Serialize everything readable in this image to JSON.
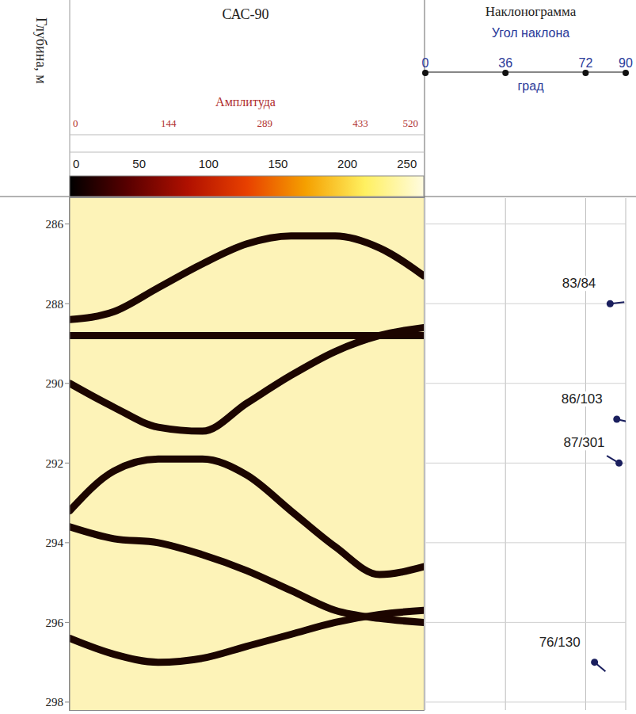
{
  "chart_data": [
    {
      "type": "line",
      "title": "САС-90",
      "ylabel": "Глубина, м",
      "xlim": [
        0,
        360
      ],
      "ylim": [
        285.35,
        298.2
      ],
      "yticks": [
        286,
        288,
        290,
        292,
        294,
        296,
        298
      ],
      "tick_labels": "y",
      "amplitude_scale": {
        "label": "Амплитуда",
        "range": [
          0,
          520
        ],
        "ticks": [
          0,
          144,
          289,
          433,
          520
        ]
      },
      "colorbar": {
        "range": [
          0,
          255
        ],
        "ticks": [
          0,
          50,
          100,
          150,
          200,
          250
        ],
        "colors": [
          "#000000",
          "#5a0000",
          "#b01000",
          "#e84000",
          "#f5a000",
          "#fff060",
          "#fffbe0"
        ]
      },
      "series": [
        {
          "color": "#1c0500",
          "x": [
            0,
            45,
            90,
            135,
            180,
            225,
            270,
            315,
            360
          ],
          "values": [
            288.4,
            288.2,
            287.6,
            287.0,
            286.5,
            286.3,
            286.3,
            286.6,
            287.3
          ]
        },
        {
          "color": "#1c0500",
          "x": [
            0,
            360
          ],
          "values": [
            288.8,
            288.8
          ]
        },
        {
          "color": "#1c0500",
          "x": [
            0,
            45,
            90,
            135,
            180,
            225,
            270,
            315,
            360
          ],
          "values": [
            290.0,
            290.6,
            291.1,
            291.2,
            290.5,
            289.8,
            289.2,
            288.8,
            288.6
          ]
        },
        {
          "color": "#1c0500",
          "x": [
            0,
            45,
            90,
            135,
            180,
            225,
            270,
            315,
            360
          ],
          "values": [
            293.2,
            292.2,
            291.9,
            291.9,
            292.3,
            293.2,
            294.1,
            294.8,
            294.6
          ]
        },
        {
          "color": "#1c0500",
          "x": [
            0,
            45,
            90,
            135,
            180,
            225,
            270,
            315,
            360
          ],
          "values": [
            293.6,
            293.9,
            294.0,
            294.3,
            294.7,
            295.2,
            295.7,
            295.9,
            296.0
          ]
        },
        {
          "color": "#1c0500",
          "x": [
            0,
            45,
            90,
            135,
            180,
            225,
            270,
            315,
            360
          ],
          "values": [
            296.4,
            296.8,
            297.0,
            296.9,
            296.6,
            296.3,
            296.0,
            295.8,
            295.7
          ]
        }
      ]
    },
    {
      "type": "scatter",
      "title": "Наклонограмма",
      "xlabel": "Угол наклона",
      "xunits": "град",
      "xlim": [
        0,
        90
      ],
      "xticks": [
        0,
        36,
        72,
        90
      ],
      "ylim": [
        285.35,
        298.2
      ],
      "yticks": [
        286,
        288,
        290,
        292,
        294,
        296,
        298
      ],
      "grid": true,
      "tick_labels": "x",
      "marker": "tadpole",
      "color": "#1a1f5e",
      "x": [
        83,
        86,
        87,
        76
      ],
      "values": [
        288.0,
        290.9,
        292.0,
        297.0
      ],
      "azimuth": [
        84,
        103,
        301,
        130
      ],
      "labels": [
        "83/84",
        "86/103",
        "87/301",
        "76/130"
      ]
    }
  ]
}
